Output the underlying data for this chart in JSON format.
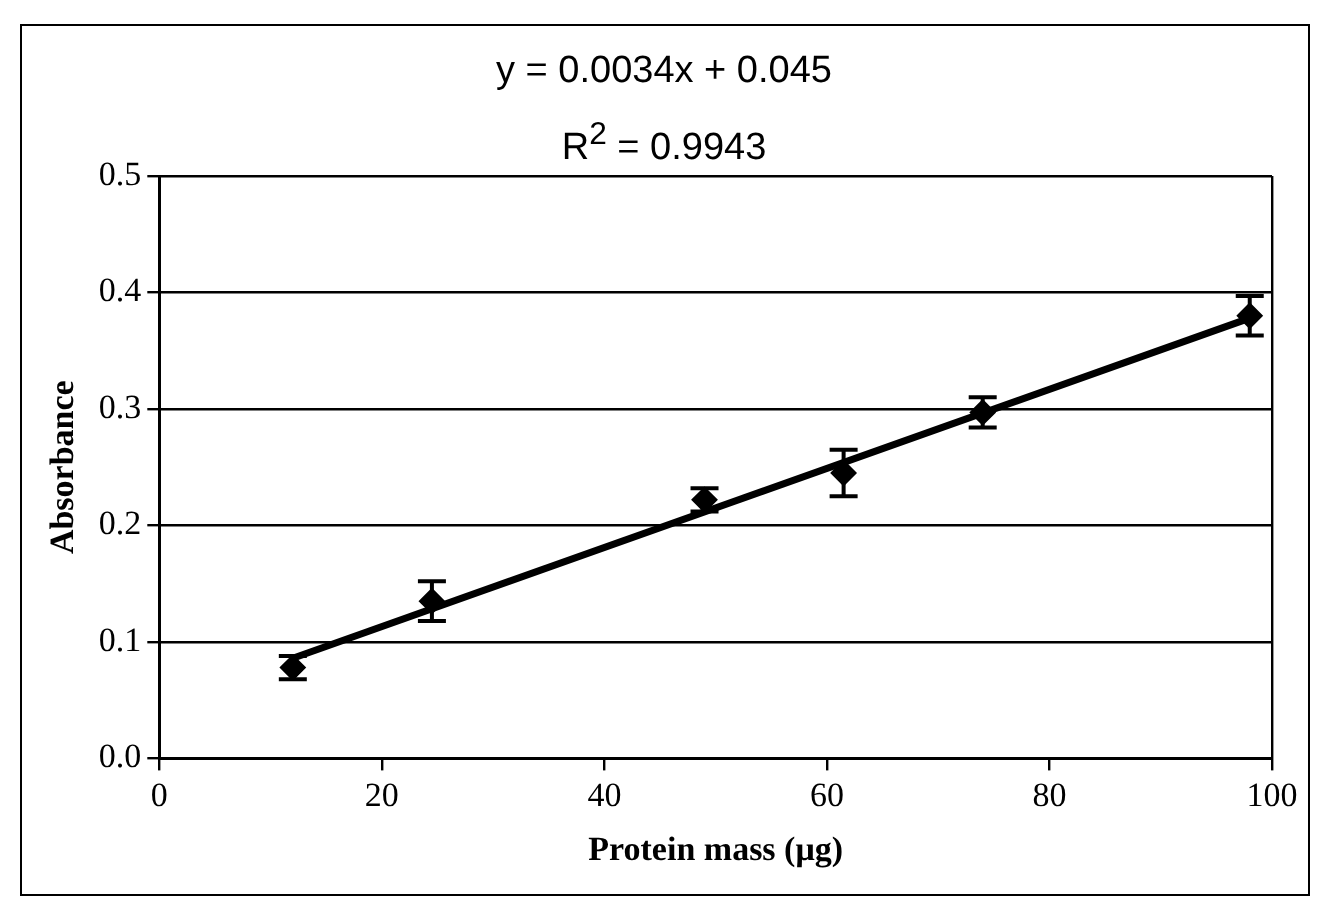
{
  "chart_data": {
    "type": "scatter",
    "xlabel": "Protein mass (μg)",
    "ylabel": "Absorbance",
    "annotations": [
      "y = 0.0034x + 0.045",
      "R$^{2}$ = 0.9943"
    ],
    "xlim": [
      0,
      100
    ],
    "xticks": [
      0,
      20,
      40,
      60,
      80,
      100
    ],
    "ylim": [
      0,
      0.5
    ],
    "yticks": [
      {
        "value": 0,
        "label": "0.0"
      },
      0.1,
      0.2,
      0.3,
      0.4,
      0.5
    ],
    "grid": "y",
    "legend": false,
    "marker": "diamond",
    "series": [
      {
        "type": "scatter",
        "color": "#000000",
        "x": [
          12,
          24.5,
          49,
          61.5,
          74,
          98
        ],
        "values": [
          0.078,
          0.135,
          0.222,
          0.245,
          0.297,
          0.38
        ],
        "errors": [
          0.01,
          0.017,
          0.01,
          0.02,
          0.013,
          0.017
        ]
      },
      {
        "type": "line",
        "color": "#000000",
        "x": [
          12,
          98
        ],
        "values": [
          0.086,
          0.378
        ],
        "marker": "none",
        "line_style": "solid"
      }
    ]
  }
}
